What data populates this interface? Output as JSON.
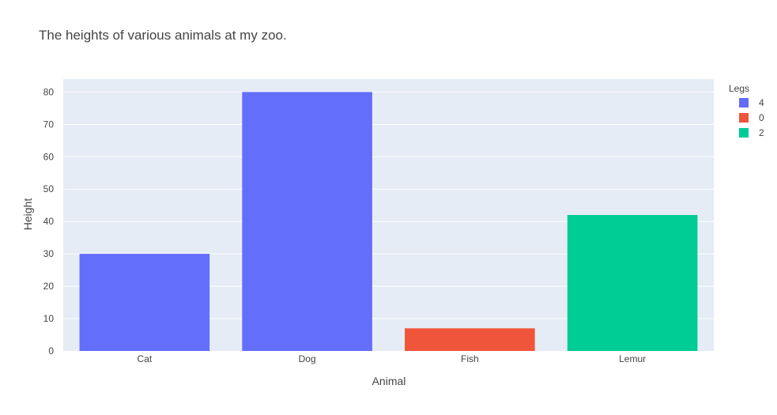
{
  "chart_data": {
    "type": "bar",
    "title": "The heights of various animals at my zoo.",
    "xlabel": "Animal",
    "ylabel": "Height",
    "categories": [
      "Cat",
      "Dog",
      "Fish",
      "Lemur"
    ],
    "ylim": [
      0,
      84
    ],
    "yticks": [
      0,
      10,
      20,
      30,
      40,
      50,
      60,
      70,
      80
    ],
    "grid": true,
    "legend": {
      "title": "Legs",
      "placement": "right",
      "entries": [
        "4",
        "0",
        "2"
      ]
    },
    "series": [
      {
        "name": "4",
        "color": "#636efa",
        "values": [
          30,
          80,
          null,
          null
        ]
      },
      {
        "name": "0",
        "color": "#EF553B",
        "values": [
          null,
          null,
          7,
          null
        ]
      },
      {
        "name": "2",
        "color": "#00cc96",
        "values": [
          null,
          null,
          null,
          42
        ]
      }
    ],
    "plot_background": "#E5ECF6",
    "gridline_color": "#ffffff"
  }
}
